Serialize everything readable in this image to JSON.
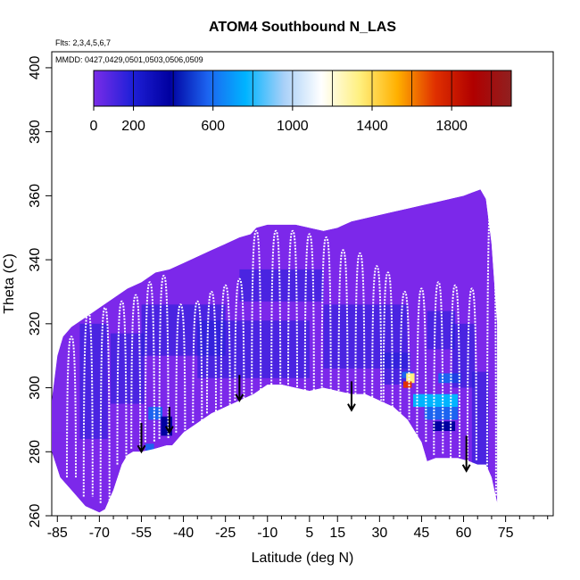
{
  "chart_data": {
    "type": "heatmap",
    "title": "ATOM4 Southbound N_LAS",
    "annotations": {
      "flights": "Flts: 2,3,4,5,6,7",
      "dates": "MMDD: 0427,0429,0501,0503,0506,0509"
    },
    "xlabel": "Latitude (deg N)",
    "ylabel": "Theta (C)",
    "xlim": [
      -87,
      92
    ],
    "ylim": [
      260,
      405
    ],
    "x_ticks": [
      -85,
      -70,
      -55,
      -40,
      -25,
      -10,
      5,
      15,
      30,
      45,
      60,
      75
    ],
    "x_tick_labels": [
      "-85",
      "-70",
      "-55",
      "-40",
      "-25",
      "-10",
      "5",
      "15",
      "30",
      "45",
      "60",
      "75"
    ],
    "y_ticks": [
      260,
      280,
      300,
      320,
      340,
      360,
      380,
      400
    ],
    "y_tick_labels": [
      "260",
      "280",
      "300",
      "320",
      "340",
      "360",
      "380",
      "400"
    ],
    "colorbar": {
      "range": [
        0,
        2100
      ],
      "ticks": [
        0,
        200,
        600,
        1000,
        1400,
        1800
      ],
      "tick_labels": [
        "0",
        "200",
        "600",
        "1000",
        "1400",
        "1800"
      ],
      "boundaries": [
        0,
        200,
        400,
        600,
        800,
        1000,
        1200,
        1400,
        1600,
        1800,
        2000,
        2100
      ],
      "colors": [
        "#7a2ce8",
        "#2020d8",
        "#0000a0",
        "#1c64f0",
        "#00b4ff",
        "#a8d0f8",
        "#ffffff",
        "#fff080",
        "#ffb000",
        "#e03000",
        "#b00000",
        "#902020"
      ]
    },
    "colors": {
      "background_field": "#7c28ea",
      "low_density": "#2a18c8",
      "very_low_density": "#10109c",
      "moderate": "#2a88f0",
      "high": "#ffd000",
      "very_high": "#e03000",
      "flight_tracks": "#ffffff",
      "arrows": "#000000"
    },
    "coverage": {
      "upper_boundary": [
        [
          -87,
          296
        ],
        [
          -85,
          310
        ],
        [
          -83,
          316
        ],
        [
          -80,
          319
        ],
        [
          -75,
          322
        ],
        [
          -70,
          325
        ],
        [
          -65,
          328
        ],
        [
          -60,
          331
        ],
        [
          -55,
          333
        ],
        [
          -50,
          336
        ],
        [
          -45,
          337
        ],
        [
          -40,
          339
        ],
        [
          -35,
          341
        ],
        [
          -30,
          343
        ],
        [
          -25,
          345
        ],
        [
          -20,
          347
        ],
        [
          -16,
          348
        ],
        [
          -14,
          350
        ],
        [
          -10,
          351
        ],
        [
          -5,
          351
        ],
        [
          0,
          351
        ],
        [
          5,
          350
        ],
        [
          10,
          349
        ],
        [
          15,
          350
        ],
        [
          20,
          352
        ],
        [
          25,
          353
        ],
        [
          30,
          354
        ],
        [
          35,
          355
        ],
        [
          40,
          356
        ],
        [
          45,
          357
        ],
        [
          50,
          358
        ],
        [
          55,
          359
        ],
        [
          60,
          360
        ],
        [
          63,
          361
        ],
        [
          66,
          362
        ],
        [
          68,
          359
        ],
        [
          70,
          345
        ],
        [
          72,
          320
        ],
        [
          72,
          264
        ]
      ],
      "lower_boundary": [
        [
          72,
          264
        ],
        [
          70,
          272
        ],
        [
          68,
          276
        ],
        [
          65,
          276
        ],
        [
          62,
          277
        ],
        [
          58,
          278
        ],
        [
          55,
          278
        ],
        [
          50,
          278
        ],
        [
          47,
          277
        ],
        [
          45,
          283
        ],
        [
          40,
          290
        ],
        [
          35,
          294
        ],
        [
          30,
          296
        ],
        [
          25,
          298
        ],
        [
          20,
          298
        ],
        [
          15,
          299
        ],
        [
          10,
          300
        ],
        [
          5,
          299
        ],
        [
          0,
          300
        ],
        [
          -5,
          301
        ],
        [
          -10,
          301
        ],
        [
          -15,
          298
        ],
        [
          -20,
          296
        ],
        [
          -25,
          294
        ],
        [
          -30,
          292
        ],
        [
          -35,
          289
        ],
        [
          -40,
          286
        ],
        [
          -44,
          282
        ],
        [
          -46,
          282
        ],
        [
          -50,
          281
        ],
        [
          -55,
          280
        ],
        [
          -58,
          280
        ],
        [
          -60,
          279
        ],
        [
          -62,
          276
        ],
        [
          -65,
          268
        ],
        [
          -68,
          262
        ],
        [
          -70,
          261
        ],
        [
          -75,
          263
        ],
        [
          -80,
          268
        ],
        [
          -84,
          272
        ],
        [
          -87,
          280
        ]
      ]
    },
    "cells": [
      {
        "lat": -86,
        "theta": 300,
        "w": 12,
        "h": 28,
        "value": 100
      },
      {
        "lat": -72,
        "theta": 302,
        "w": 10,
        "h": 36,
        "value": 300
      },
      {
        "lat": -60,
        "theta": 306,
        "w": 12,
        "h": 22,
        "value": 300
      },
      {
        "lat": -50,
        "theta": 292,
        "w": 5,
        "h": 4,
        "value": 650
      },
      {
        "lat": -46,
        "theta": 288,
        "w": 4,
        "h": 6,
        "value": 500
      },
      {
        "lat": -52,
        "theta": 281,
        "w": 3,
        "h": 3,
        "value": 700
      },
      {
        "lat": -40,
        "theta": 318,
        "w": 30,
        "h": 16,
        "value": 300
      },
      {
        "lat": -15,
        "theta": 312,
        "w": 40,
        "h": 18,
        "value": 300
      },
      {
        "lat": -5,
        "theta": 332,
        "w": 30,
        "h": 10,
        "value": 300
      },
      {
        "lat": 25,
        "theta": 316,
        "w": 30,
        "h": 20,
        "value": 300
      },
      {
        "lat": 36,
        "theta": 306,
        "w": 10,
        "h": 10,
        "value": 300
      },
      {
        "lat": 40,
        "theta": 304,
        "w": 4,
        "h": 2,
        "value": 700
      },
      {
        "lat": 41,
        "theta": 303,
        "w": 3,
        "h": 3,
        "value": 1500
      },
      {
        "lat": 40,
        "theta": 301,
        "w": 3,
        "h": 2,
        "value": 1900
      },
      {
        "lat": 44,
        "theta": 295,
        "w": 2,
        "h": 2,
        "value": 1500
      },
      {
        "lat": 50,
        "theta": 296,
        "w": 16,
        "h": 4,
        "value": 800
      },
      {
        "lat": 52,
        "theta": 292,
        "w": 12,
        "h": 4,
        "value": 650
      },
      {
        "lat": 53,
        "theta": 288,
        "w": 8,
        "h": 3,
        "value": 500
      },
      {
        "lat": 55,
        "theta": 303,
        "w": 8,
        "h": 3,
        "value": 650
      },
      {
        "lat": 52,
        "theta": 318,
        "w": 10,
        "h": 12,
        "value": 300
      },
      {
        "lat": 60,
        "theta": 310,
        "w": 8,
        "h": 20,
        "value": 300
      },
      {
        "lat": 66,
        "theta": 290,
        "w": 6,
        "h": 30,
        "value": 300
      }
    ],
    "flight_profiles": [
      {
        "lat": -80,
        "bottom": 272,
        "top": 316
      },
      {
        "lat": -74,
        "bottom": 266,
        "top": 324
      },
      {
        "lat": -68,
        "bottom": 264,
        "top": 325
      },
      {
        "lat": -62,
        "bottom": 276,
        "top": 327
      },
      {
        "lat": -57,
        "bottom": 281,
        "top": 329
      },
      {
        "lat": -52,
        "bottom": 283,
        "top": 333
      },
      {
        "lat": -47,
        "bottom": 284,
        "top": 335
      },
      {
        "lat": -41,
        "bottom": 286,
        "top": 326
      },
      {
        "lat": -35,
        "bottom": 289,
        "top": 327
      },
      {
        "lat": -30,
        "bottom": 292,
        "top": 330
      },
      {
        "lat": -25,
        "bottom": 294,
        "top": 332
      },
      {
        "lat": -20,
        "bottom": 296,
        "top": 334
      },
      {
        "lat": -14,
        "bottom": 298,
        "top": 349
      },
      {
        "lat": -7,
        "bottom": 300,
        "top": 349
      },
      {
        "lat": -1,
        "bottom": 300,
        "top": 349
      },
      {
        "lat": 5,
        "bottom": 299,
        "top": 348
      },
      {
        "lat": 11,
        "bottom": 299,
        "top": 347
      },
      {
        "lat": 17,
        "bottom": 298,
        "top": 343
      },
      {
        "lat": 23,
        "bottom": 297,
        "top": 342
      },
      {
        "lat": 29,
        "bottom": 296,
        "top": 338
      },
      {
        "lat": 33,
        "bottom": 293,
        "top": 336
      },
      {
        "lat": 39,
        "bottom": 290,
        "top": 330
      },
      {
        "lat": 45,
        "bottom": 283,
        "top": 331
      },
      {
        "lat": 51,
        "bottom": 279,
        "top": 333
      },
      {
        "lat": 57,
        "bottom": 278,
        "top": 332
      },
      {
        "lat": 63,
        "bottom": 277,
        "top": 331
      },
      {
        "lat": 70,
        "bottom": 266,
        "top": 360
      }
    ],
    "arrows": [
      {
        "lat": -55,
        "theta_start": 289,
        "theta_end": 280
      },
      {
        "lat": -45,
        "theta_start": 294,
        "theta_end": 286
      },
      {
        "lat": -20,
        "theta_start": 304,
        "theta_end": 296
      },
      {
        "lat": 20,
        "theta_start": 302,
        "theta_end": 293
      },
      {
        "lat": 61,
        "theta_start": 285,
        "theta_end": 274
      }
    ]
  }
}
